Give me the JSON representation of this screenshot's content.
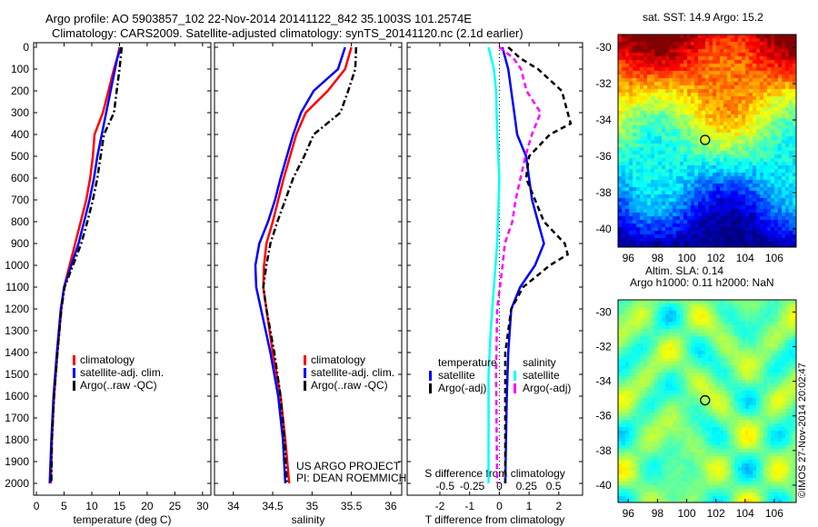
{
  "title": {
    "line1": "Argo profile: AO 5903857_102 22-Nov-2014 20141122_842 35.1003S 101.2574E",
    "line2": "Climatology: CARS2009. Satellite-adjusted climatology: synTS_20141120.nc (2.1d earlier)"
  },
  "credit": "US ARGO PROJECT",
  "pi": "PI: DEAN ROEMMICH",
  "copyright": "©IMOS 27-Nov-2014 20:02:47",
  "chart_data": [
    {
      "type": "line",
      "name": "temperature",
      "xlabel": "temperature (deg C)",
      "xlim": [
        -0.5,
        31.5
      ],
      "ylim": [
        2050,
        0
      ],
      "xticks": [
        0,
        5,
        10,
        15,
        20,
        25,
        30
      ],
      "yticks": [
        0,
        100,
        200,
        300,
        400,
        500,
        600,
        700,
        800,
        900,
        1000,
        1100,
        1200,
        1300,
        1400,
        1500,
        1600,
        1700,
        1800,
        1900,
        2000
      ],
      "legend": [
        "climatology",
        "satellite-adj. clim.",
        "Argo(..raw -QC)"
      ],
      "series": [
        {
          "name": "climatology",
          "color": "#ff0000",
          "style": "solid",
          "depth": [
            0,
            50,
            100,
            200,
            300,
            400,
            500,
            600,
            700,
            800,
            900,
            1000,
            1100,
            1200,
            1400,
            1600,
            1800,
            2000
          ],
          "values": [
            15,
            14.6,
            14,
            13,
            12,
            10.5,
            10.2,
            9.7,
            9,
            8,
            7,
            6,
            5,
            4.5,
            3.8,
            3.2,
            2.8,
            2.6
          ]
        },
        {
          "name": "satellite-adj. clim.",
          "color": "#0000ff",
          "style": "solid",
          "depth": [
            0,
            50,
            100,
            200,
            300,
            400,
            500,
            600,
            700,
            800,
            900,
            1000,
            1100,
            1200,
            1400,
            1600,
            1800,
            2000
          ],
          "values": [
            15.3,
            14.6,
            14.2,
            13.4,
            12.6,
            11.8,
            11,
            10.4,
            9.6,
            8.6,
            7.6,
            6.3,
            5,
            4.4,
            3.7,
            3.1,
            2.7,
            2.4
          ]
        },
        {
          "name": "Argo(..raw -QC)",
          "color": "#000000",
          "style": "dashdot",
          "depth": [
            0,
            50,
            100,
            200,
            300,
            400,
            500,
            600,
            700,
            800,
            900,
            1000,
            1100,
            1200,
            1400,
            1600,
            1800,
            2000
          ],
          "values": [
            15.4,
            15.2,
            15,
            14.5,
            14,
            12.2,
            11.6,
            11,
            10.2,
            9.2,
            8.1,
            6.6,
            5.1,
            4.5,
            3.8,
            3.2,
            2.8,
            2.7
          ]
        }
      ]
    },
    {
      "type": "line",
      "name": "salinity",
      "xlabel": "salinity",
      "xlim": [
        33.76,
        36.14
      ],
      "ylim": [
        2050,
        0
      ],
      "xticks": [
        34,
        34.5,
        35,
        35.5,
        36
      ],
      "legend": [
        "climatology",
        "satellite-adj. clim.",
        "Argo(..raw -QC)"
      ],
      "series": [
        {
          "name": "climatology",
          "color": "#ff0000",
          "style": "solid",
          "depth": [
            0,
            100,
            200,
            300,
            400,
            500,
            600,
            700,
            800,
            900,
            1000,
            1100,
            1200,
            1400,
            1600,
            1800,
            2000
          ],
          "values": [
            35.5,
            35.42,
            35.2,
            34.92,
            34.8,
            34.72,
            34.64,
            34.57,
            34.5,
            34.42,
            34.39,
            34.38,
            34.42,
            34.5,
            34.6,
            34.66,
            34.71
          ]
        },
        {
          "name": "satellite-adj. clim.",
          "color": "#0000ff",
          "style": "solid",
          "depth": [
            0,
            100,
            200,
            300,
            400,
            500,
            600,
            700,
            800,
            900,
            1000,
            1100,
            1200,
            1400,
            1600,
            1800,
            2000
          ],
          "values": [
            35.42,
            35.33,
            35.02,
            34.86,
            34.76,
            34.68,
            34.6,
            34.53,
            34.44,
            34.33,
            34.28,
            34.29,
            34.35,
            34.47,
            34.57,
            34.63,
            34.66
          ]
        },
        {
          "name": "Argo(..raw -QC)",
          "color": "#000000",
          "style": "dashdot",
          "depth": [
            0,
            100,
            200,
            300,
            400,
            500,
            600,
            700,
            800,
            900,
            1000,
            1100,
            1200,
            1400,
            1600,
            1800,
            2000
          ],
          "values": [
            35.56,
            35.55,
            35.46,
            35.36,
            35.02,
            34.9,
            34.76,
            34.66,
            34.56,
            34.47,
            34.42,
            34.38,
            34.42,
            34.52,
            34.6,
            34.65,
            34.68
          ]
        }
      ]
    },
    {
      "type": "line",
      "name": "difference",
      "xlabel": "T difference from climatology",
      "toplabel": "S difference from climatology",
      "xlim": [
        -3.1,
        2.8
      ],
      "xticks": [
        -2,
        -1,
        0,
        1,
        2
      ],
      "sticks": [
        -0.5,
        -0.25,
        0,
        0.25,
        0.5
      ],
      "s_scale": 8.3,
      "legend_t": {
        "title": "temperature",
        "items": [
          "satellite",
          "Argo(-adj)"
        ]
      },
      "legend_s": {
        "title": "salinity",
        "items": [
          "satellite",
          "Argo(-adj)"
        ]
      },
      "series": [
        {
          "name": "T satellite",
          "color": "#0000ff",
          "style": "solid",
          "var": "T",
          "depth": [
            0,
            100,
            200,
            300,
            400,
            500,
            600,
            700,
            800,
            900,
            1000,
            1100,
            1200,
            1400,
            1600,
            2000
          ],
          "values": [
            0.1,
            0.3,
            0.4,
            0.5,
            0.6,
            0.9,
            1.0,
            1.1,
            1.3,
            1.5,
            1.2,
            0.7,
            0.4,
            0.3,
            0.25,
            0.2
          ]
        },
        {
          "name": "T Argo(-adj)",
          "color": "#000000",
          "style": "dash",
          "var": "T",
          "depth": [
            0,
            50,
            100,
            200,
            300,
            350,
            400,
            500,
            600,
            700,
            800,
            900,
            950,
            1000,
            1100,
            1200,
            1400,
            2000
          ],
          "values": [
            0.3,
            0.7,
            1.3,
            2.1,
            2.3,
            2.4,
            1.7,
            1.0,
            0.9,
            1.2,
            1.5,
            2.2,
            2.3,
            1.7,
            0.8,
            0.4,
            0.2,
            0.2
          ]
        },
        {
          "name": "S satellite",
          "color": "#00ffff",
          "style": "solid",
          "var": "S",
          "depth": [
            0,
            100,
            200,
            400,
            600,
            900,
            1100,
            1300,
            1500,
            2000
          ],
          "values": [
            -0.1,
            -0.05,
            -0.03,
            -0.02,
            0,
            -0.02,
            -0.05,
            -0.08,
            -0.1,
            -0.1
          ]
        },
        {
          "name": "S Argo(-adj)",
          "color": "#ff00ff",
          "style": "dash",
          "var": "S",
          "depth": [
            0,
            50,
            100,
            200,
            300,
            400,
            500,
            700,
            800,
            900,
            1000,
            1200,
            1500,
            2000
          ],
          "values": [
            0,
            0.13,
            0.2,
            0.25,
            0.38,
            0.3,
            0.24,
            0.15,
            0.12,
            0.05,
            0.03,
            -0.02,
            -0.03,
            -0.02
          ]
        }
      ]
    },
    {
      "type": "heatmap",
      "name": "sst-map",
      "title": "sat. SST: 14.9 Argo: 15.2",
      "xticks": [
        96,
        98,
        100,
        102,
        104,
        106
      ],
      "yticks": [
        -30,
        -32,
        -34,
        -36,
        -38,
        -40
      ],
      "xlim": [
        95.3,
        107.5
      ],
      "ylim": [
        -41,
        -29.3
      ],
      "marker": [
        101.26,
        -35.1
      ]
    },
    {
      "type": "heatmap",
      "name": "sla-map",
      "title": "Altim. SLA: 0.14",
      "subtitle": "Argo h1000: 0.11 h2000: NaN",
      "xticks": [
        96,
        98,
        100,
        102,
        104,
        106
      ],
      "yticks": [
        -30,
        -32,
        -34,
        -36,
        -38,
        -40
      ],
      "xlim": [
        95.3,
        107.5
      ],
      "ylim": [
        -41,
        -29.3
      ],
      "marker": [
        101.26,
        -35.1
      ]
    }
  ]
}
